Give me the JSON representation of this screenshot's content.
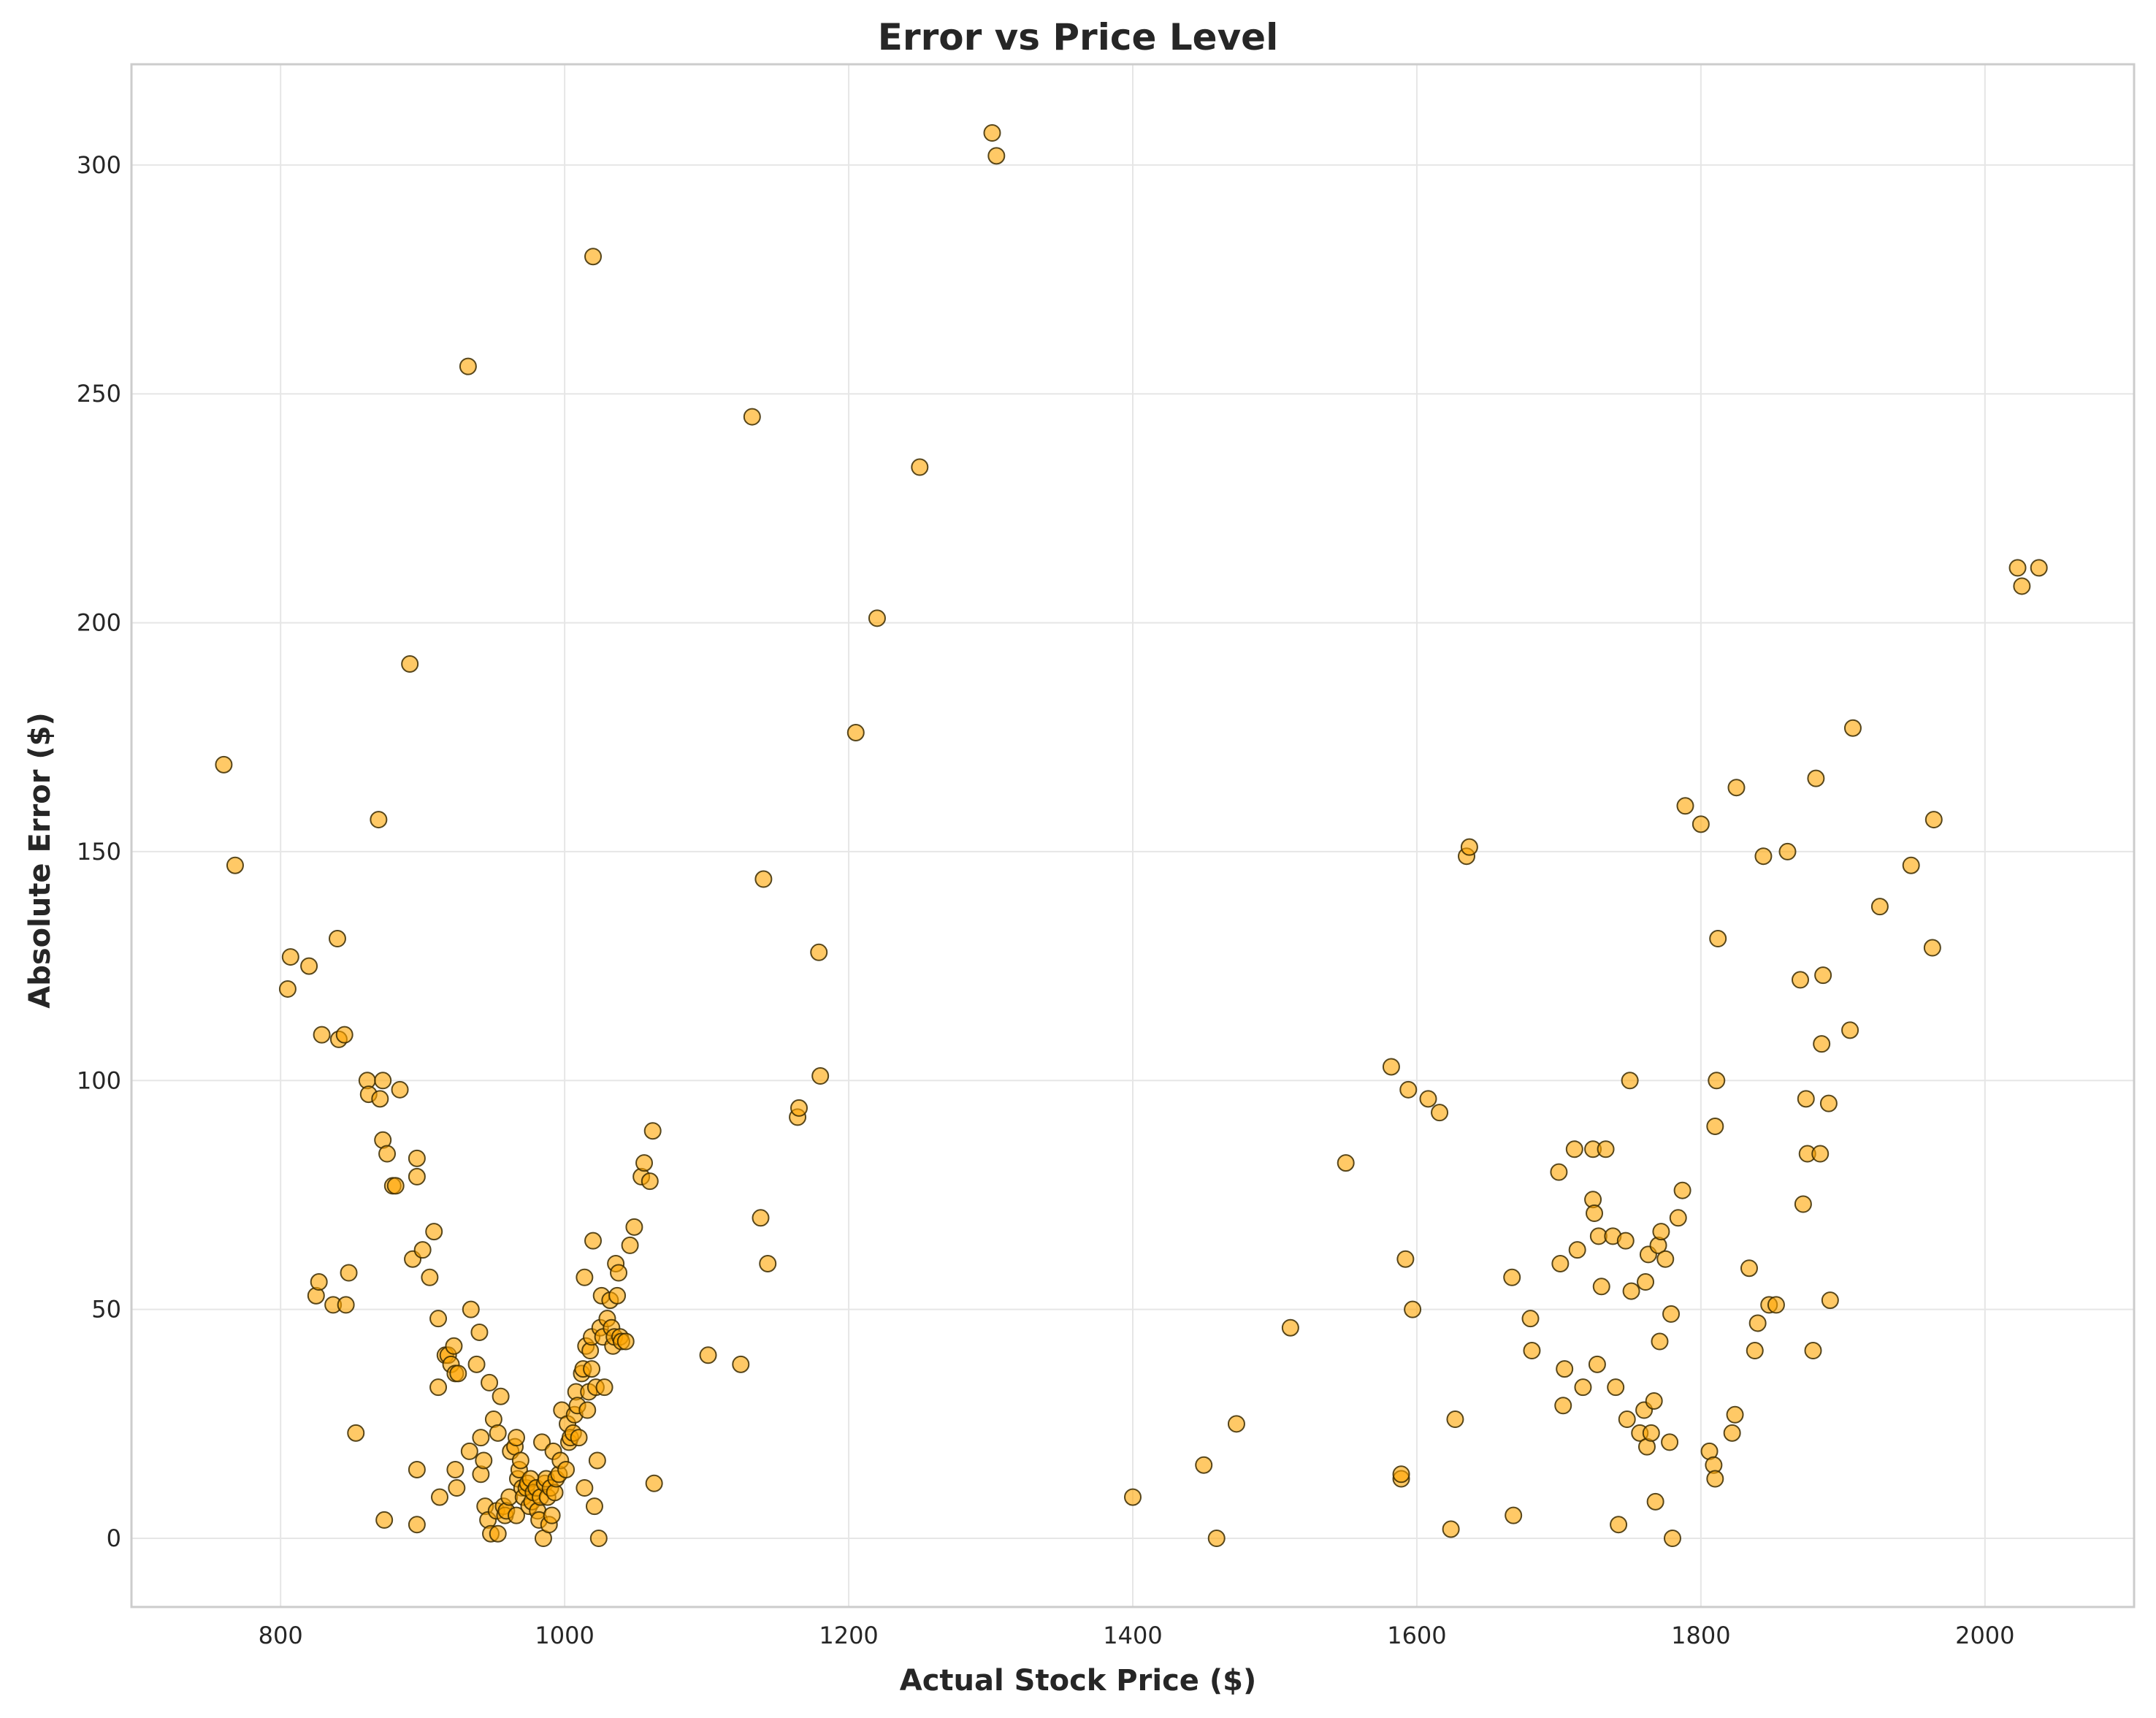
{
  "chart_data": {
    "type": "scatter",
    "title": "Error vs Price Level",
    "xlabel": "Actual Stock Price ($)",
    "ylabel": "Absolute Error ($)",
    "xlim": [
      695,
      2105
    ],
    "ylim": [
      -15,
      322
    ],
    "xticks": [
      800,
      1000,
      1200,
      1400,
      1600,
      1800,
      2000
    ],
    "yticks": [
      0,
      50,
      100,
      150,
      200,
      250,
      300
    ],
    "grid": true,
    "legend": "none",
    "marker_color": "#FFA500",
    "marker_edge_color": "#3a2a00",
    "points": [
      [
        760,
        169
      ],
      [
        768,
        147
      ],
      [
        805,
        120
      ],
      [
        807,
        127
      ],
      [
        820,
        125
      ],
      [
        825,
        53
      ],
      [
        827,
        56
      ],
      [
        829,
        110
      ],
      [
        837,
        51
      ],
      [
        840,
        131
      ],
      [
        841,
        109
      ],
      [
        845,
        110
      ],
      [
        846,
        51
      ],
      [
        848,
        58
      ],
      [
        853,
        23
      ],
      [
        861,
        100
      ],
      [
        862,
        97
      ],
      [
        869,
        157
      ],
      [
        870,
        96
      ],
      [
        872,
        100
      ],
      [
        872,
        87
      ],
      [
        873,
        4
      ],
      [
        875,
        84
      ],
      [
        879,
        77
      ],
      [
        881,
        77
      ],
      [
        884,
        98
      ],
      [
        891,
        191
      ],
      [
        893,
        61
      ],
      [
        896,
        83
      ],
      [
        896,
        79
      ],
      [
        896,
        15
      ],
      [
        896,
        3
      ],
      [
        900,
        63
      ],
      [
        905,
        57
      ],
      [
        908,
        67
      ],
      [
        911,
        48
      ],
      [
        911,
        33
      ],
      [
        912,
        9
      ],
      [
        916,
        40
      ],
      [
        918,
        40
      ],
      [
        920,
        38
      ],
      [
        922,
        42
      ],
      [
        923,
        15
      ],
      [
        923,
        36
      ],
      [
        924,
        11
      ],
      [
        925,
        36
      ],
      [
        932,
        256
      ],
      [
        933,
        19
      ],
      [
        934,
        50
      ],
      [
        938,
        38
      ],
      [
        940,
        45
      ],
      [
        941,
        14
      ],
      [
        941,
        22
      ],
      [
        943,
        17
      ],
      [
        944,
        7
      ],
      [
        946,
        4
      ],
      [
        947,
        34
      ],
      [
        948,
        1
      ],
      [
        950,
        26
      ],
      [
        952,
        6
      ],
      [
        953,
        23
      ],
      [
        953,
        1
      ],
      [
        955,
        31
      ],
      [
        957,
        7
      ],
      [
        958,
        5
      ],
      [
        959,
        6
      ],
      [
        961,
        9
      ],
      [
        962,
        19
      ],
      [
        965,
        20
      ],
      [
        966,
        5
      ],
      [
        966,
        22
      ],
      [
        967,
        13
      ],
      [
        968,
        15
      ],
      [
        969,
        17
      ],
      [
        970,
        11
      ],
      [
        971,
        9
      ],
      [
        973,
        11
      ],
      [
        974,
        12
      ],
      [
        975,
        7
      ],
      [
        976,
        13
      ],
      [
        977,
        8
      ],
      [
        978,
        10
      ],
      [
        980,
        11
      ],
      [
        981,
        6
      ],
      [
        982,
        4
      ],
      [
        983,
        9
      ],
      [
        984,
        21
      ],
      [
        985,
        0
      ],
      [
        986,
        12
      ],
      [
        987,
        13
      ],
      [
        988,
        9
      ],
      [
        989,
        3
      ],
      [
        990,
        11
      ],
      [
        991,
        5
      ],
      [
        992,
        19
      ],
      [
        993,
        10
      ],
      [
        994,
        13
      ],
      [
        996,
        14
      ],
      [
        997,
        17
      ],
      [
        998,
        28
      ],
      [
        1001,
        15
      ],
      [
        1002,
        25
      ],
      [
        1003,
        21
      ],
      [
        1004,
        22
      ],
      [
        1006,
        23
      ],
      [
        1007,
        27
      ],
      [
        1008,
        32
      ],
      [
        1009,
        29
      ],
      [
        1010,
        22
      ],
      [
        1012,
        36
      ],
      [
        1013,
        37
      ],
      [
        1014,
        11
      ],
      [
        1014,
        57
      ],
      [
        1015,
        42
      ],
      [
        1016,
        28
      ],
      [
        1017,
        32
      ],
      [
        1018,
        41
      ],
      [
        1019,
        44
      ],
      [
        1019,
        37
      ],
      [
        1020,
        280
      ],
      [
        1020,
        65
      ],
      [
        1021,
        7
      ],
      [
        1022,
        33
      ],
      [
        1023,
        17
      ],
      [
        1024,
        0
      ],
      [
        1025,
        46
      ],
      [
        1026,
        53
      ],
      [
        1027,
        44
      ],
      [
        1028,
        33
      ],
      [
        1030,
        48
      ],
      [
        1032,
        52
      ],
      [
        1033,
        46
      ],
      [
        1034,
        42
      ],
      [
        1035,
        44
      ],
      [
        1036,
        60
      ],
      [
        1037,
        53
      ],
      [
        1038,
        58
      ],
      [
        1039,
        44
      ],
      [
        1040,
        43
      ],
      [
        1043,
        43
      ],
      [
        1046,
        64
      ],
      [
        1049,
        68
      ],
      [
        1054,
        79
      ],
      [
        1056,
        82
      ],
      [
        1060,
        78
      ],
      [
        1062,
        89
      ],
      [
        1063,
        12
      ],
      [
        1101,
        40
      ],
      [
        1124,
        38
      ],
      [
        1132,
        245
      ],
      [
        1138,
        70
      ],
      [
        1140,
        144
      ],
      [
        1143,
        60
      ],
      [
        1164,
        92
      ],
      [
        1165,
        94
      ],
      [
        1179,
        128
      ],
      [
        1180,
        101
      ],
      [
        1205,
        176
      ],
      [
        1220,
        201
      ],
      [
        1250,
        234
      ],
      [
        1301,
        307
      ],
      [
        1304,
        302
      ],
      [
        1400,
        9
      ],
      [
        1450,
        16
      ],
      [
        1459,
        0
      ],
      [
        1473,
        25
      ],
      [
        1511,
        46
      ],
      [
        1550,
        82
      ],
      [
        1582,
        103
      ],
      [
        1589,
        13
      ],
      [
        1589,
        14
      ],
      [
        1592,
        61
      ],
      [
        1594,
        98
      ],
      [
        1597,
        50
      ],
      [
        1608,
        96
      ],
      [
        1616,
        93
      ],
      [
        1624,
        2
      ],
      [
        1627,
        26
      ],
      [
        1635,
        149
      ],
      [
        1637,
        151
      ],
      [
        1667,
        57
      ],
      [
        1668,
        5
      ],
      [
        1680,
        48
      ],
      [
        1681,
        41
      ],
      [
        1700,
        80
      ],
      [
        1701,
        60
      ],
      [
        1703,
        29
      ],
      [
        1704,
        37
      ],
      [
        1711,
        85
      ],
      [
        1713,
        63
      ],
      [
        1717,
        33
      ],
      [
        1724,
        74
      ],
      [
        1724,
        85
      ],
      [
        1725,
        71
      ],
      [
        1727,
        38
      ],
      [
        1728,
        66
      ],
      [
        1730,
        55
      ],
      [
        1733,
        85
      ],
      [
        1738,
        66
      ],
      [
        1740,
        33
      ],
      [
        1742,
        3
      ],
      [
        1747,
        65
      ],
      [
        1748,
        26
      ],
      [
        1750,
        100
      ],
      [
        1751,
        54
      ],
      [
        1757,
        23
      ],
      [
        1760,
        28
      ],
      [
        1761,
        56
      ],
      [
        1762,
        20
      ],
      [
        1763,
        62
      ],
      [
        1765,
        23
      ],
      [
        1767,
        30
      ],
      [
        1768,
        8
      ],
      [
        1770,
        64
      ],
      [
        1771,
        43
      ],
      [
        1772,
        67
      ],
      [
        1775,
        61
      ],
      [
        1778,
        21
      ],
      [
        1779,
        49
      ],
      [
        1780,
        0
      ],
      [
        1784,
        70
      ],
      [
        1787,
        76
      ],
      [
        1789,
        160
      ],
      [
        1800,
        156
      ],
      [
        1806,
        19
      ],
      [
        1809,
        16
      ],
      [
        1810,
        13
      ],
      [
        1810,
        90
      ],
      [
        1811,
        100
      ],
      [
        1812,
        131
      ],
      [
        1822,
        23
      ],
      [
        1824,
        27
      ],
      [
        1825,
        164
      ],
      [
        1834,
        59
      ],
      [
        1838,
        41
      ],
      [
        1840,
        47
      ],
      [
        1844,
        149
      ],
      [
        1848,
        51
      ],
      [
        1853,
        51
      ],
      [
        1861,
        150
      ],
      [
        1870,
        122
      ],
      [
        1872,
        73
      ],
      [
        1874,
        96
      ],
      [
        1875,
        84
      ],
      [
        1879,
        41
      ],
      [
        1881,
        166
      ],
      [
        1884,
        84
      ],
      [
        1885,
        108
      ],
      [
        1886,
        123
      ],
      [
        1890,
        95
      ],
      [
        1891,
        52
      ],
      [
        1905,
        111
      ],
      [
        1907,
        177
      ],
      [
        1926,
        138
      ],
      [
        1948,
        147
      ],
      [
        1963,
        129
      ],
      [
        1964,
        157
      ],
      [
        2023,
        212
      ],
      [
        2026,
        208
      ],
      [
        2038,
        212
      ]
    ]
  }
}
